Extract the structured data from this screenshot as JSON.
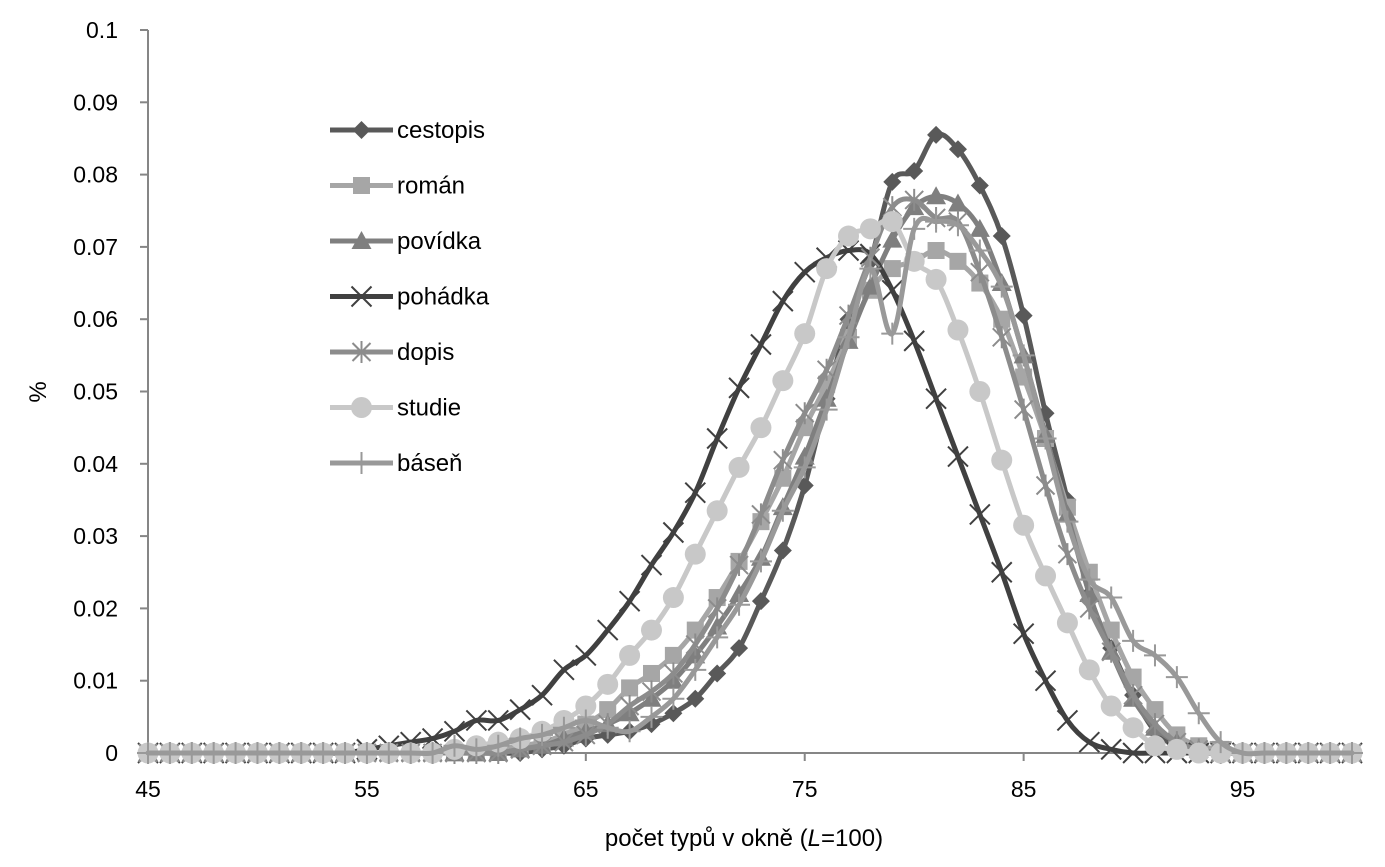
{
  "chart_data": {
    "type": "line",
    "title": "",
    "xlabel_prefix": "počet typů v okně (",
    "xlabel_italic": "L",
    "xlabel_suffix": "=100)",
    "ylabel": "%",
    "xlim": [
      45,
      100
    ],
    "ylim": [
      0,
      0.1
    ],
    "xticks": [
      45,
      55,
      65,
      75,
      85,
      95
    ],
    "yticks": [
      0,
      0.01,
      0.02,
      0.03,
      0.04,
      0.05,
      0.06,
      0.07,
      0.08,
      0.09,
      0.1
    ],
    "ytick_labels": [
      "0",
      "0.01",
      "0.02",
      "0.03",
      "0.04",
      "0.05",
      "0.06",
      "0.07",
      "0.08",
      "0.09",
      "0.1"
    ],
    "grid": false,
    "legend_position": "top-left (inside plot)",
    "series": [
      {
        "name": "cestopis",
        "marker": "diamond",
        "color": "#595959",
        "x": [
          45,
          46,
          47,
          48,
          49,
          50,
          51,
          52,
          53,
          54,
          55,
          56,
          57,
          58,
          59,
          60,
          61,
          62,
          63,
          64,
          65,
          66,
          67,
          68,
          69,
          70,
          71,
          72,
          73,
          74,
          75,
          76,
          77,
          78,
          79,
          80,
          81,
          82,
          83,
          84,
          85,
          86,
          87,
          88,
          89,
          90,
          91,
          92,
          93,
          94,
          95,
          96,
          97,
          98,
          99,
          100
        ],
        "y": [
          0,
          0,
          0,
          0,
          0,
          0,
          0,
          0,
          0,
          0,
          0,
          0,
          0,
          0,
          0,
          0,
          0,
          0,
          0.0005,
          0.001,
          0.002,
          0.0025,
          0.003,
          0.004,
          0.0055,
          0.0075,
          0.011,
          0.0145,
          0.021,
          0.028,
          0.037,
          0.049,
          0.06,
          0.068,
          0.079,
          0.0805,
          0.0855,
          0.0835,
          0.0785,
          0.0715,
          0.0605,
          0.047,
          0.035,
          0.022,
          0.0145,
          0.008,
          0.003,
          0.001,
          0,
          0,
          0,
          0,
          0,
          0,
          0,
          0
        ]
      },
      {
        "name": "román",
        "marker": "square",
        "color": "#a6a6a6",
        "x": [
          45,
          46,
          47,
          48,
          49,
          50,
          51,
          52,
          53,
          54,
          55,
          56,
          57,
          58,
          59,
          60,
          61,
          62,
          63,
          64,
          65,
          66,
          67,
          68,
          69,
          70,
          71,
          72,
          73,
          74,
          75,
          76,
          77,
          78,
          79,
          80,
          81,
          82,
          83,
          84,
          85,
          86,
          87,
          88,
          89,
          90,
          91,
          92,
          93,
          94,
          95,
          96,
          97,
          98,
          99,
          100
        ],
        "y": [
          0,
          0,
          0,
          0,
          0,
          0,
          0,
          0,
          0,
          0,
          0,
          0,
          0,
          0,
          0,
          0,
          0.0005,
          0.001,
          0.0015,
          0.0025,
          0.004,
          0.006,
          0.009,
          0.011,
          0.0135,
          0.017,
          0.0215,
          0.0265,
          0.032,
          0.038,
          0.045,
          0.051,
          0.0575,
          0.064,
          0.067,
          0.068,
          0.0695,
          0.068,
          0.065,
          0.06,
          0.052,
          0.0435,
          0.034,
          0.025,
          0.017,
          0.0105,
          0.006,
          0.0025,
          0.001,
          0.0005,
          0,
          0,
          0,
          0,
          0,
          0
        ]
      },
      {
        "name": "povídka",
        "marker": "triangle",
        "color": "#7f7f7f",
        "x": [
          45,
          46,
          47,
          48,
          49,
          50,
          51,
          52,
          53,
          54,
          55,
          56,
          57,
          58,
          59,
          60,
          61,
          62,
          63,
          64,
          65,
          66,
          67,
          68,
          69,
          70,
          71,
          72,
          73,
          74,
          75,
          76,
          77,
          78,
          79,
          80,
          81,
          82,
          83,
          84,
          85,
          86,
          87,
          88,
          89,
          90,
          91,
          92,
          93,
          94,
          95,
          96,
          97,
          98,
          99,
          100
        ],
        "y": [
          0,
          0,
          0,
          0,
          0,
          0,
          0,
          0,
          0,
          0,
          0,
          0,
          0,
          0,
          0,
          0,
          0,
          0.0005,
          0.001,
          0.002,
          0.003,
          0.004,
          0.0055,
          0.0075,
          0.01,
          0.0135,
          0.0175,
          0.022,
          0.027,
          0.034,
          0.041,
          0.049,
          0.057,
          0.0645,
          0.071,
          0.0755,
          0.077,
          0.076,
          0.0725,
          0.065,
          0.055,
          0.044,
          0.033,
          0.022,
          0.014,
          0.0075,
          0.0035,
          0.0015,
          0.0005,
          0,
          0,
          0,
          0,
          0,
          0,
          0
        ]
      },
      {
        "name": "pohádka",
        "marker": "x",
        "color": "#404040",
        "x": [
          45,
          46,
          47,
          48,
          49,
          50,
          51,
          52,
          53,
          54,
          55,
          56,
          57,
          58,
          59,
          60,
          61,
          62,
          63,
          64,
          65,
          66,
          67,
          68,
          69,
          70,
          71,
          72,
          73,
          74,
          75,
          76,
          77,
          78,
          79,
          80,
          81,
          82,
          83,
          84,
          85,
          86,
          87,
          88,
          89,
          90,
          91,
          92,
          93,
          94,
          95,
          96,
          97,
          98,
          99,
          100
        ],
        "y": [
          0,
          0,
          0,
          0,
          0,
          0,
          0,
          0,
          0,
          0,
          0.0005,
          0.001,
          0.0015,
          0.002,
          0.003,
          0.0045,
          0.0045,
          0.006,
          0.008,
          0.0115,
          0.0135,
          0.017,
          0.021,
          0.026,
          0.0305,
          0.036,
          0.0435,
          0.0505,
          0.0565,
          0.0625,
          0.0665,
          0.0685,
          0.0695,
          0.069,
          0.064,
          0.057,
          0.049,
          0.041,
          0.033,
          0.025,
          0.0165,
          0.01,
          0.0045,
          0.0015,
          0.0005,
          0,
          0,
          0,
          0,
          0,
          0,
          0,
          0,
          0,
          0,
          0
        ]
      },
      {
        "name": "dopis",
        "marker": "star",
        "color": "#8c8c8c",
        "x": [
          45,
          46,
          47,
          48,
          49,
          50,
          51,
          52,
          53,
          54,
          55,
          56,
          57,
          58,
          59,
          60,
          61,
          62,
          63,
          64,
          65,
          66,
          67,
          68,
          69,
          70,
          71,
          72,
          73,
          74,
          75,
          76,
          77,
          78,
          79,
          80,
          81,
          82,
          83,
          84,
          85,
          86,
          87,
          88,
          89,
          90,
          91,
          92,
          93,
          94,
          95,
          96,
          97,
          98,
          99,
          100
        ],
        "y": [
          0,
          0,
          0,
          0,
          0,
          0,
          0,
          0,
          0,
          0,
          0,
          0,
          0,
          0,
          0,
          0,
          0,
          0.0005,
          0.001,
          0.0015,
          0.0025,
          0.004,
          0.0065,
          0.0085,
          0.011,
          0.015,
          0.02,
          0.026,
          0.033,
          0.0405,
          0.047,
          0.053,
          0.0605,
          0.0685,
          0.0755,
          0.0765,
          0.074,
          0.0735,
          0.0665,
          0.0575,
          0.0475,
          0.037,
          0.0275,
          0.02,
          0.014,
          0.008,
          0.004,
          0.0015,
          0.0005,
          0,
          0,
          0,
          0,
          0,
          0,
          0
        ]
      },
      {
        "name": "studie",
        "marker": "circle",
        "color": "#c8c8c8",
        "x": [
          45,
          46,
          47,
          48,
          49,
          50,
          51,
          52,
          53,
          54,
          55,
          56,
          57,
          58,
          59,
          60,
          61,
          62,
          63,
          64,
          65,
          66,
          67,
          68,
          69,
          70,
          71,
          72,
          73,
          74,
          75,
          76,
          77,
          78,
          79,
          80,
          81,
          82,
          83,
          84,
          85,
          86,
          87,
          88,
          89,
          90,
          91,
          92,
          93,
          94,
          95,
          96,
          97,
          98,
          99,
          100
        ],
        "y": [
          0,
          0,
          0,
          0,
          0,
          0,
          0,
          0,
          0,
          0,
          0,
          0,
          0,
          0,
          0.0005,
          0.001,
          0.0015,
          0.002,
          0.003,
          0.0045,
          0.0065,
          0.0095,
          0.0135,
          0.017,
          0.0215,
          0.0275,
          0.0335,
          0.0395,
          0.045,
          0.0515,
          0.058,
          0.067,
          0.0715,
          0.0725,
          0.0735,
          0.068,
          0.0655,
          0.0585,
          0.05,
          0.0405,
          0.0315,
          0.0245,
          0.018,
          0.0115,
          0.0065,
          0.0035,
          0.001,
          0.0005,
          0,
          0,
          0,
          0,
          0,
          0,
          0,
          0
        ]
      },
      {
        "name": "báseň",
        "marker": "plus",
        "color": "#999999",
        "x": [
          45,
          46,
          47,
          48,
          49,
          50,
          51,
          52,
          53,
          54,
          55,
          56,
          57,
          58,
          59,
          60,
          61,
          62,
          63,
          64,
          65,
          66,
          67,
          68,
          69,
          70,
          71,
          72,
          73,
          74,
          75,
          76,
          77,
          78,
          79,
          80,
          81,
          82,
          83,
          84,
          85,
          86,
          87,
          88,
          89,
          90,
          91,
          92,
          93,
          94,
          95,
          96,
          97,
          98,
          99,
          100
        ],
        "y": [
          0,
          0,
          0,
          0,
          0,
          0,
          0,
          0,
          0,
          0,
          0,
          0,
          0,
          0,
          0.001,
          0.0005,
          0.001,
          0.002,
          0.0025,
          0.0035,
          0.0045,
          0.0035,
          0.003,
          0.005,
          0.0075,
          0.0115,
          0.016,
          0.0205,
          0.0265,
          0.0335,
          0.0395,
          0.0475,
          0.0575,
          0.067,
          0.058,
          0.0725,
          0.0735,
          0.073,
          0.0695,
          0.0645,
          0.055,
          0.0435,
          0.032,
          0.024,
          0.0215,
          0.0155,
          0.0135,
          0.0105,
          0.0055,
          0.0015,
          0,
          0,
          0,
          0,
          0,
          0
        ]
      }
    ]
  }
}
